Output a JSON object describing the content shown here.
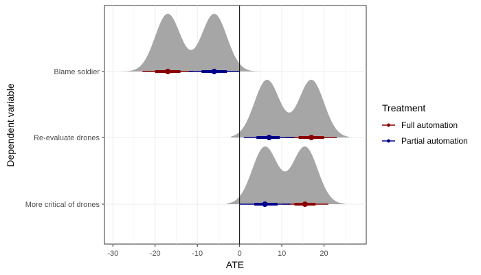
{
  "chart_data": {
    "type": "ridgeline-pointrange",
    "xlabel": "ATE",
    "ylabel": "Dependent variable",
    "xlim": [
      -32,
      30
    ],
    "x_ticks": [
      -30,
      -20,
      -10,
      0,
      10,
      20
    ],
    "x_tick_labels": [
      "-30",
      "-20",
      "-10",
      "0",
      "10",
      "20"
    ],
    "categories": [
      "Blame soldier",
      "Re-evaluate drones",
      "More critical of drones"
    ],
    "reference_line_x": 0,
    "grid": true,
    "legend": {
      "title": "Treatment",
      "position": "right",
      "entries": [
        "Full automation",
        "Partial automation"
      ]
    },
    "colors": {
      "Full automation": "#8b0000",
      "Partial automation": "#00008b",
      "density": "#a6a6a6"
    },
    "series": [
      {
        "name": "Full automation",
        "estimates": [
          {
            "category": "Blame soldier",
            "estimate": -17,
            "ci95": [
              -23,
              -11
            ],
            "ci_inner": [
              -20,
              -14
            ]
          },
          {
            "category": "Re-evaluate drones",
            "estimate": 17,
            "ci95": [
              11,
              23
            ],
            "ci_inner": [
              14,
              20
            ]
          },
          {
            "category": "More critical of drones",
            "estimate": 15.5,
            "ci95": [
              10,
              21
            ],
            "ci_inner": [
              13,
              18
            ]
          }
        ]
      },
      {
        "name": "Partial automation",
        "estimates": [
          {
            "category": "Blame soldier",
            "estimate": -6,
            "ci95": [
              -12,
              0
            ],
            "ci_inner": [
              -9,
              -3
            ]
          },
          {
            "category": "Re-evaluate drones",
            "estimate": 7,
            "ci95": [
              1,
              13
            ],
            "ci_inner": [
              4,
              9.5
            ]
          },
          {
            "category": "More critical of drones",
            "estimate": 6,
            "ci95": [
              0,
              12
            ],
            "ci_inner": [
              3.5,
              9
            ]
          }
        ]
      }
    ],
    "densities": [
      {
        "category": "Blame soldier",
        "peaks": [
          {
            "mean": -17,
            "sd": 3.0
          },
          {
            "mean": -6,
            "sd": 3.0
          }
        ],
        "range": [
          -30,
          5
        ]
      },
      {
        "category": "Re-evaluate drones",
        "peaks": [
          {
            "mean": 6.5,
            "sd": 3.0
          },
          {
            "mean": 17,
            "sd": 3.0
          }
        ],
        "range": [
          -2,
          26
        ]
      },
      {
        "category": "More critical of drones",
        "peaks": [
          {
            "mean": 6,
            "sd": 3.0
          },
          {
            "mean": 15.5,
            "sd": 3.0
          }
        ],
        "range": [
          -3,
          25
        ]
      }
    ]
  }
}
